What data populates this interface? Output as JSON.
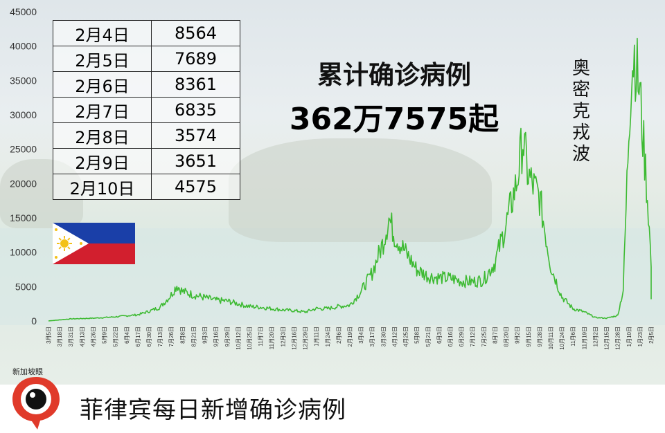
{
  "title": "累计确诊病例",
  "total_cases": "362万7575起",
  "variant_label": "奥密克戎波",
  "footer_title": "菲律宾每日新增确诊病例",
  "logo_text": "新加坡眼",
  "colors": {
    "line": "#3dba32",
    "flag_blue": "#1a3fa8",
    "flag_red": "#d21f2e",
    "flag_sun": "#f3c118",
    "logo_red": "#e03a2a"
  },
  "daily_table": [
    {
      "date": "2月4日",
      "value": "8564"
    },
    {
      "date": "2月5日",
      "value": "7689"
    },
    {
      "date": "2月6日",
      "value": "8361"
    },
    {
      "date": "2月7日",
      "value": "6835"
    },
    {
      "date": "2月8日",
      "value": "3574"
    },
    {
      "date": "2月9日",
      "value": "3651"
    },
    {
      "date": "2月10日",
      "value": "4575"
    }
  ],
  "chart_data": {
    "type": "line",
    "title": "",
    "xlabel": "",
    "ylabel": "",
    "ylim": [
      0,
      45000
    ],
    "yticks": [
      0,
      5000,
      10000,
      15000,
      20000,
      25000,
      30000,
      35000,
      40000,
      45000
    ],
    "grid": false,
    "x_ticks": [
      "3月5日",
      "3月18日",
      "3月31日",
      "4月13日",
      "4月26日",
      "5月9日",
      "5月22日",
      "6月4日",
      "6月17日",
      "6月30日",
      "7月13日",
      "7月26日",
      "8月8日",
      "8月21日",
      "9月3日",
      "9月16日",
      "9月29日",
      "10月12日",
      "10月25日",
      "11月7日",
      "11月20日",
      "12月3日",
      "12月16日",
      "12月29日",
      "1月11日",
      "1月24日",
      "2月6日",
      "2月19日",
      "3月4日",
      "3月17日",
      "3月30日",
      "4月12日",
      "4月25日",
      "5月8日",
      "5月21日",
      "6月3日",
      "6月16日",
      "6月29日",
      "7月12日",
      "7月25日",
      "8月7日",
      "8月20日",
      "9月2日",
      "9月15日",
      "9月28日",
      "10月11日",
      "10月24日",
      "11月6日",
      "11月19日",
      "12月2日",
      "12月15日",
      "12月28日",
      "1月10日",
      "1月23日",
      "2月5日"
    ],
    "series": [
      {
        "x": [
          "3月5日",
          "3月31日",
          "4月26日",
          "5月22日",
          "6月17日",
          "6月30日",
          "7月13日",
          "7月26日",
          "8月1日",
          "8月8日",
          "8月21日",
          "9月3日",
          "9月16日",
          "9月29日",
          "10月12日",
          "10月25日",
          "11月7日",
          "11月20日",
          "12月3日",
          "12月16日",
          "12月29日",
          "1月11日",
          "1月24日",
          "2月6日",
          "2月19日",
          "3月4日",
          "3月17日",
          "3月30日",
          "4月2日",
          "4月12日",
          "4月25日",
          "5月8日",
          "5月21日",
          "6月3日",
          "6月16日",
          "6月29日",
          "7月12日",
          "7月25日",
          "8月7日",
          "8月20日",
          "9月2日",
          "9月11日",
          "9月15日",
          "9月28日",
          "10月11日",
          "10月24日",
          "11月6日",
          "11月19日",
          "12月2日",
          "12月15日",
          "12月28日",
          "1月3日",
          "1月10日",
          "1月14日",
          "1月17日",
          "1月20日",
          "1月23日",
          "1月26日",
          "1月29日",
          "2月1日",
          "2月5日",
          "2月8日",
          "2月10日"
        ],
        "y": [
          5,
          300,
          400,
          600,
          900,
          1400,
          2000,
          3800,
          5200,
          4300,
          3800,
          3400,
          3000,
          2900,
          2500,
          2100,
          2000,
          1800,
          1600,
          1500,
          1300,
          1800,
          1800,
          2100,
          2300,
          4300,
          7000,
          11500,
          15000,
          12500,
          10000,
          7500,
          6500,
          6300,
          6200,
          5800,
          5700,
          6000,
          8500,
          14000,
          20500,
          26500,
          21000,
          18000,
          8000,
          3500,
          1800,
          1300,
          500,
          400,
          800,
          4500,
          28000,
          37000,
          39000,
          36000,
          33000,
          27000,
          22000,
          16000,
          8000,
          3600,
          4575
        ]
      }
    ]
  }
}
